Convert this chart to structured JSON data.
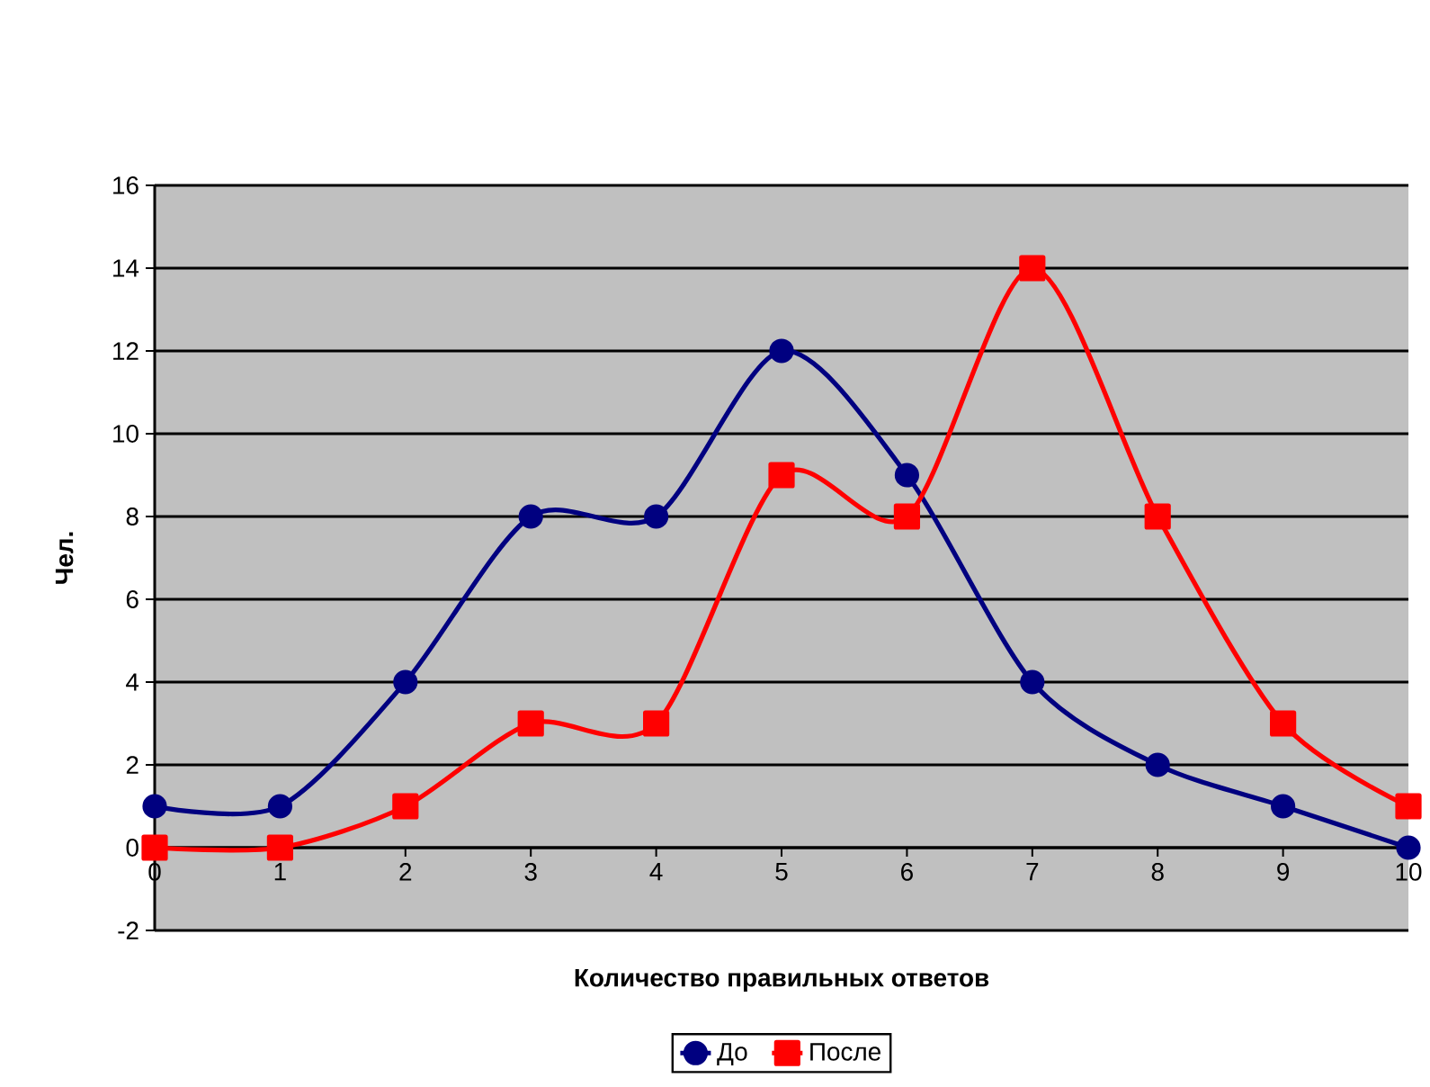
{
  "chart_data": {
    "type": "line",
    "xlabel": "Количество правильных ответов",
    "ylabel": "Чел.",
    "x": [
      0,
      1,
      2,
      3,
      4,
      5,
      6,
      7,
      8,
      9,
      10
    ],
    "xlim": [
      0,
      10
    ],
    "xticks": [
      0,
      1,
      2,
      3,
      4,
      5,
      6,
      7,
      8,
      9,
      10
    ],
    "ylim": [
      -2,
      16
    ],
    "yticks": [
      -2,
      0,
      2,
      4,
      6,
      8,
      10,
      12,
      14,
      16
    ],
    "grid": "y",
    "legend": "bottom",
    "series": [
      {
        "name": "До",
        "color": "#000080",
        "marker": "circle",
        "values": [
          1,
          1,
          4,
          8,
          8,
          12,
          9,
          4,
          2,
          1,
          0
        ]
      },
      {
        "name": "После",
        "color": "#ff0000",
        "marker": "square",
        "values": [
          0,
          0,
          1,
          3,
          3,
          9,
          8,
          14,
          8,
          3,
          1
        ]
      }
    ]
  }
}
